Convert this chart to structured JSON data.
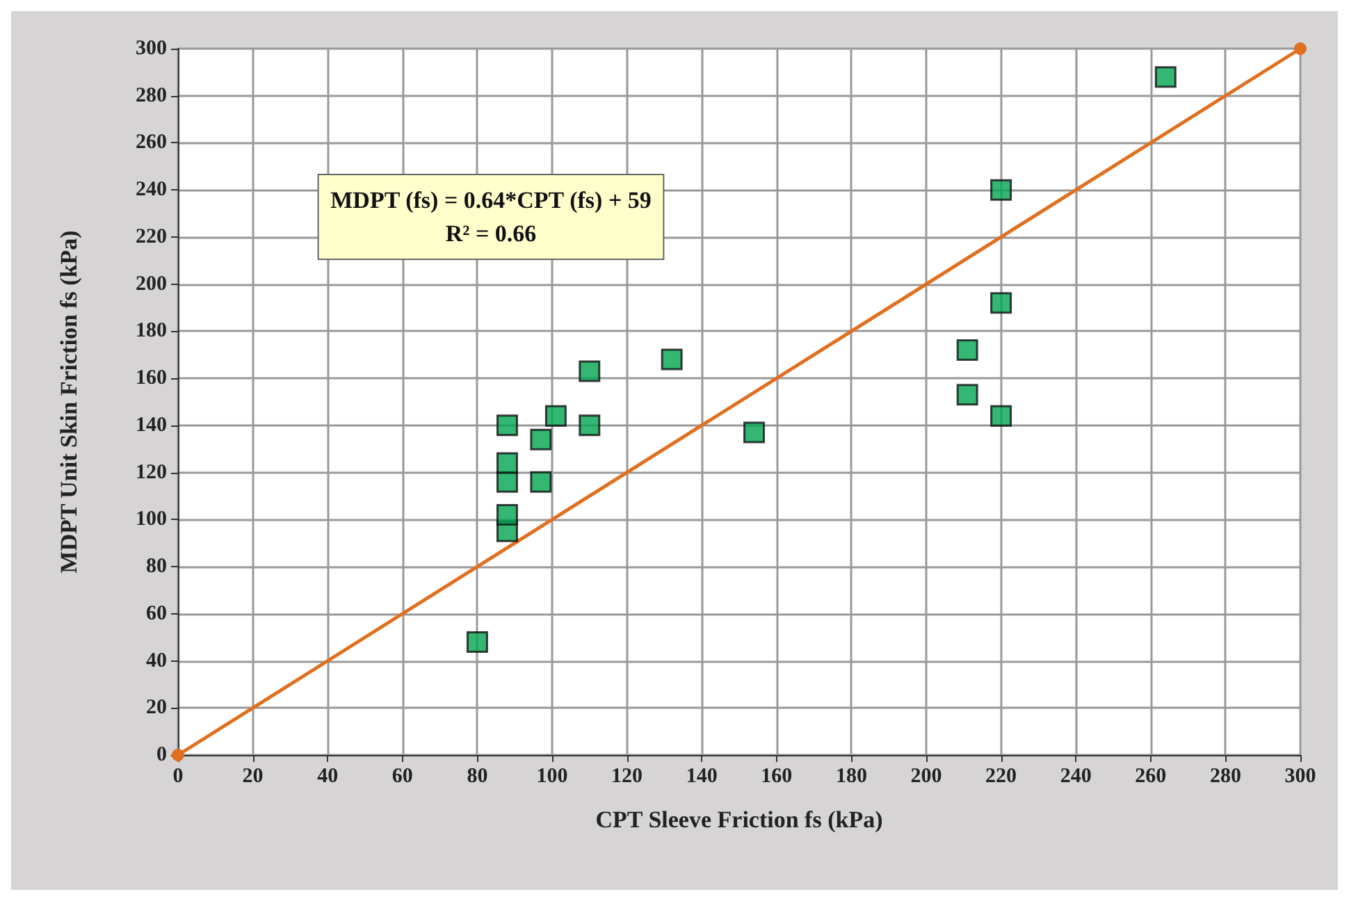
{
  "chart_data": {
    "type": "scatter",
    "xlabel": "CPT Sleeve Friction fs (kPa)",
    "ylabel": "MDPT Unit Skin Friction fs (kPa)",
    "xlim": [
      0,
      300
    ],
    "ylim": [
      0,
      300
    ],
    "xticks": [
      0,
      20,
      40,
      60,
      80,
      100,
      120,
      140,
      160,
      180,
      200,
      220,
      240,
      260,
      280,
      300
    ],
    "yticks": [
      0,
      20,
      40,
      60,
      80,
      100,
      120,
      140,
      160,
      180,
      200,
      220,
      240,
      260,
      280,
      300
    ],
    "grid": true,
    "annotations": [
      "MDPT (fs) = 0.64*CPT (fs) + 59\nR² = 0.66"
    ],
    "series": [
      {
        "marker": "square",
        "color": "#00a550",
        "x": [
          80,
          88,
          88,
          88,
          88,
          88,
          97,
          97,
          101,
          110,
          110,
          132,
          154,
          211,
          211,
          220,
          220,
          220,
          264
        ],
        "values": [
          48,
          95,
          102,
          116,
          124,
          140,
          116,
          134,
          144,
          140,
          163,
          168,
          137,
          153,
          172,
          144,
          192,
          240,
          288
        ]
      },
      {
        "type": "line",
        "marker": "circle",
        "line_style": "solid",
        "color": "#e07020",
        "x": [
          0,
          300
        ],
        "values": [
          0,
          300
        ]
      }
    ]
  }
}
